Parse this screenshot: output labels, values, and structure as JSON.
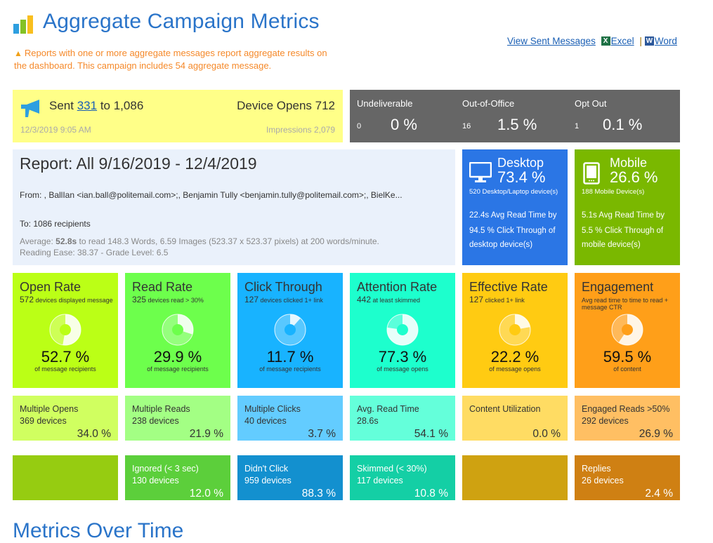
{
  "header": {
    "title": "Aggregate Campaign Metrics",
    "logo_colors": [
      "#2e9fe0",
      "#84c225",
      "#f9bf1e"
    ],
    "notice": "Reports with one or more aggregate messages report aggregate results on the dashboard. This campaign includes 54 aggregate message.",
    "links": {
      "view_sent": "View Sent Messages",
      "excel": "Excel",
      "separator": "|",
      "word": "Word"
    }
  },
  "sent": {
    "prefix": "Sent",
    "sent_count": "331",
    "to_label": "to 1,086",
    "date": "12/3/2019 9:05 AM",
    "device_opens": "Device Opens 712",
    "impressions": "Impressions 2,079"
  },
  "status": [
    {
      "label": "Undeliverable",
      "count": "0",
      "percent": "0 %"
    },
    {
      "label": "Out-of-Office",
      "count": "16",
      "percent": "1.5 %"
    },
    {
      "label": "Opt Out",
      "count": "1",
      "percent": "0.1 %"
    }
  ],
  "report": {
    "title": "Report: All 9/16/2019 - 12/4/2019",
    "from": "From: , BallIan <ian.ball@politemail.com>;, Benjamin Tully <benjamin.tully@politemail.com>;, BielKe...",
    "to": "To: 1086 recipients",
    "avg_prefix": "Average: ",
    "avg_time": "52.8s",
    "avg_rest": " to read 148.3 Words, 6.59 Images (523.37 x 523.37 pixels) at 200 words/minute.",
    "reading": "Reading Ease: 38.37 - Grade Level: 6.5"
  },
  "devices": [
    {
      "name": "Desktop",
      "percent": "73.4 %",
      "count": "520 Desktop/Laptop device(s)",
      "line1": "22.4s Avg Read Time by",
      "line2": "94.5 % Click Through of",
      "line3": "desktop device(s)",
      "color": "#2b76e5"
    },
    {
      "name": "Mobile",
      "percent": "26.6 %",
      "count": "188 Mobile Device(s)",
      "line1": "5.1s Avg Read Time by",
      "line2": "5.5 % Click Through of",
      "line3": "mobile device(s)",
      "color": "#7ab800"
    }
  ],
  "metrics": [
    {
      "title": "Open Rate",
      "num": "572",
      "desc": " devices displayed message",
      "value": 52.7,
      "percent": "52.7 %",
      "sub": "of message recipients",
      "color": "#bbff16"
    },
    {
      "title": "Read Rate",
      "num": "325",
      "desc": " devices read > 30%",
      "value": 29.9,
      "percent": "29.9 %",
      "sub": "of message recipients",
      "color": "#6dff4c"
    },
    {
      "title": "Click Through",
      "num": "127",
      "desc": " devices clicked 1+ link",
      "value": 11.7,
      "percent": "11.7 %",
      "sub": "of message recipients",
      "color": "#18b3ff"
    },
    {
      "title": "Attention Rate",
      "num": "442",
      "desc": "  at least skimmed",
      "value": 77.3,
      "percent": "77.3 %",
      "sub": "of message opens",
      "color": "#1dffcd"
    },
    {
      "title": "Effective Rate",
      "num": "127",
      "desc": "  clicked 1+ link",
      "value": 22.2,
      "percent": "22.2 %",
      "sub": "of message opens",
      "color": "#ffcb12"
    },
    {
      "title": "Engagement",
      "num": "",
      "desc": "Avg read time to time to read + message CTR",
      "value": 59.5,
      "percent": "59.5 %",
      "sub": "of content",
      "color": "#ff9f19"
    }
  ],
  "row2": [
    {
      "title": "Multiple Opens",
      "detail": "369 devices",
      "percent": "34.0 %",
      "color": "#d0ff60"
    },
    {
      "title": "Multiple Reads",
      "detail": "238 devices",
      "percent": "21.9 %",
      "color": "#a3ff84"
    },
    {
      "title": "Multiple Clicks",
      "detail": "40 devices",
      "percent": "3.7 %",
      "color": "#63ccff"
    },
    {
      "title": "Avg. Read Time",
      "detail": "28.6s",
      "percent": "54.1 %",
      "color": "#64ffda"
    },
    {
      "title": "Content Utilization",
      "detail": "",
      "percent": "0.0 %",
      "color": "#ffdc63"
    },
    {
      "title": "Engaged Reads >50%",
      "detail": "292 devices",
      "percent": "26.9 %",
      "color": "#ffbf63"
    }
  ],
  "row3": [
    {
      "title": "",
      "detail": "",
      "percent": "",
      "color": "#96cc11"
    },
    {
      "title": "Ignored (< 3 sec)",
      "detail": "130 devices",
      "percent": "12.0 %",
      "color": "#5ccf3b"
    },
    {
      "title": "Didn't Click",
      "detail": "959 devices",
      "percent": "88.3 %",
      "color": "#1390cf"
    },
    {
      "title": "Skimmed (< 30%)",
      "detail": "117 devices",
      "percent": "10.8 %",
      "color": "#14cfa5"
    },
    {
      "title": "",
      "detail": "",
      "percent": "",
      "color": "#cfa211"
    },
    {
      "title": "Replies",
      "detail": "26 devices",
      "percent": "2.4 %",
      "color": "#cf8013"
    }
  ],
  "bottom_title": "Metrics Over Time"
}
